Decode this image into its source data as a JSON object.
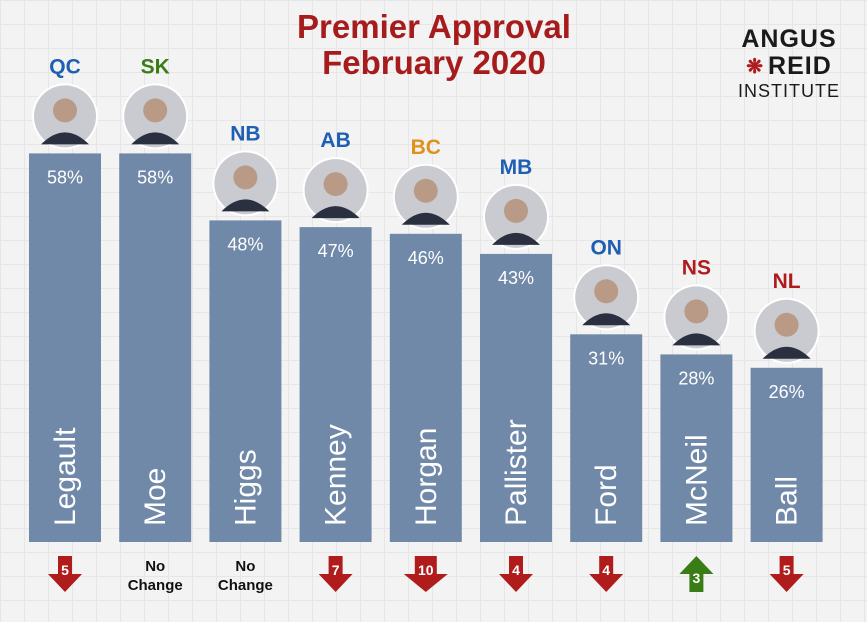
{
  "title_line1": "Premier Approval",
  "title_line2": "February 2020",
  "logo": {
    "line1": "ANGUS",
    "line2": "REID",
    "line3": "INSTITUTE",
    "leaf": "maple-leaf-icon"
  },
  "colors": {
    "bar": "#7189a8",
    "title": "#a61c1c",
    "down": "#b01c1c",
    "up": "#3a7d17"
  },
  "chart_data": {
    "type": "bar",
    "title": "Premier Approval February 2020",
    "ylim": [
      0,
      100
    ],
    "categories": [
      "Legault",
      "Moe",
      "Higgs",
      "Kenney",
      "Horgan",
      "Pallister",
      "Ford",
      "McNeil",
      "Ball"
    ],
    "values": [
      58,
      58,
      48,
      47,
      46,
      43,
      31,
      28,
      26
    ],
    "labels": [
      "58%",
      "58%",
      "48%",
      "47%",
      "46%",
      "43%",
      "31%",
      "28%",
      "26%"
    ],
    "provinces": [
      "QC",
      "SK",
      "NB",
      "AB",
      "BC",
      "MB",
      "ON",
      "NS",
      "NL"
    ],
    "province_colors": [
      "#1e5fb3",
      "#3a7d17",
      "#1e5fb3",
      "#1e5fb3",
      "#e0901c",
      "#1e5fb3",
      "#1e5fb3",
      "#b01c1c",
      "#b01c1c"
    ],
    "changes": [
      {
        "direction": "down",
        "value": "5"
      },
      {
        "direction": "none",
        "line1": "No",
        "line2": "Change"
      },
      {
        "direction": "none",
        "line1": "No",
        "line2": "Change"
      },
      {
        "direction": "down",
        "value": "7"
      },
      {
        "direction": "down",
        "value": "10"
      },
      {
        "direction": "down",
        "value": "4"
      },
      {
        "direction": "down",
        "value": "4"
      },
      {
        "direction": "up",
        "value": "3"
      },
      {
        "direction": "down",
        "value": "5"
      }
    ]
  }
}
